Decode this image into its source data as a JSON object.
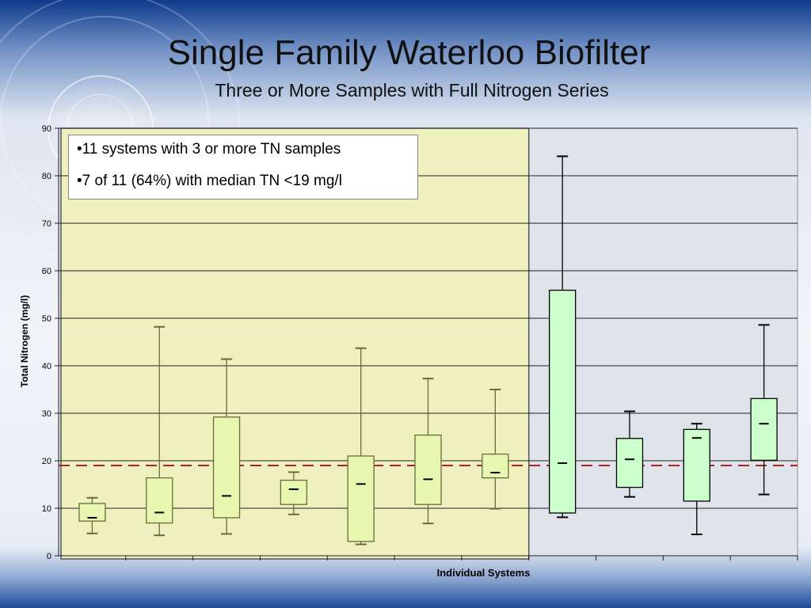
{
  "header": {
    "title": "Single Family Waterloo Biofilter",
    "subtitle": "Three or More Samples with Full Nitrogen Series"
  },
  "annotations": [
    "•11 systems with 3 or more TN samples",
    "•7 of 11 (64%) with median TN <19 mg/l"
  ],
  "colors": {
    "highlight_region": "#eef0bd",
    "box_fill_highlighted": "#e7f7b0",
    "box_fill_other": "#ccffcc",
    "reference_line": "#b22222",
    "box_stroke_highlighted": "#6b6b3a",
    "box_stroke_other": "#000000"
  },
  "chart_data": {
    "type": "boxplot",
    "xlabel": "Individual Systems",
    "ylabel": "Total Nitrogen (mg/l)",
    "ylim": [
      0,
      90
    ],
    "yticks": [
      "0",
      "10",
      "20",
      "30",
      "40",
      "50",
      "60",
      "70",
      "80",
      "90"
    ],
    "grid": true,
    "reference_line": 19,
    "highlighted_count": 7,
    "boxes": [
      {
        "min": 4.7,
        "q1": 7.3,
        "median": 8.0,
        "q3": 11.0,
        "max": 12.2
      },
      {
        "min": 4.3,
        "q1": 6.9,
        "median": 9.1,
        "q3": 16.4,
        "max": 48.2
      },
      {
        "min": 4.6,
        "q1": 8.0,
        "median": 12.6,
        "q3": 29.2,
        "max": 41.4
      },
      {
        "min": 8.7,
        "q1": 10.8,
        "median": 14.0,
        "q3": 15.9,
        "max": 17.6
      },
      {
        "min": 2.4,
        "q1": 3.0,
        "median": 15.1,
        "q3": 21.0,
        "max": 43.7
      },
      {
        "min": 6.8,
        "q1": 10.8,
        "median": 16.1,
        "q3": 25.4,
        "max": 37.3
      },
      {
        "min": 9.9,
        "q1": 16.4,
        "median": 17.5,
        "q3": 21.4,
        "max": 35.0
      },
      {
        "min": 8.1,
        "q1": 9.0,
        "median": 19.5,
        "q3": 55.9,
        "max": 84.1
      },
      {
        "min": 12.4,
        "q1": 14.4,
        "median": 20.3,
        "q3": 24.7,
        "max": 30.4
      },
      {
        "min": 4.5,
        "q1": 11.5,
        "median": 24.8,
        "q3": 26.6,
        "max": 27.8
      },
      {
        "min": 12.9,
        "q1": 20.1,
        "median": 27.8,
        "q3": 33.1,
        "max": 48.6
      }
    ]
  }
}
